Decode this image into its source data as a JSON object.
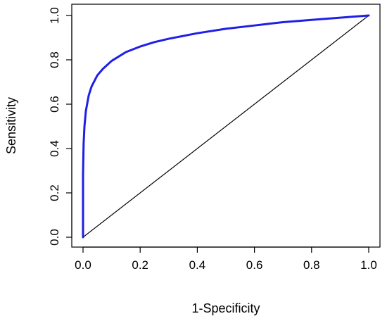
{
  "chart_data": {
    "type": "line",
    "title": "",
    "xlabel": "1-Specificity",
    "ylabel": "Sensitivity",
    "xlim": [
      0.0,
      1.0
    ],
    "ylim": [
      0.0,
      1.0
    ],
    "xticks": [
      "0.0",
      "0.2",
      "0.4",
      "0.6",
      "0.8",
      "1.0"
    ],
    "yticks": [
      "0.0",
      "0.2",
      "0.4",
      "0.6",
      "0.8",
      "1.0"
    ],
    "grid": false,
    "legend": "none",
    "series": [
      {
        "color": "#1f1fe6",
        "x": [
          0.0,
          0.0,
          0.002,
          0.005,
          0.01,
          0.02,
          0.03,
          0.05,
          0.07,
          0.1,
          0.15,
          0.2,
          0.25,
          0.3,
          0.4,
          0.5,
          0.6,
          0.7,
          0.8,
          0.9,
          1.0
        ],
        "y": [
          0.0,
          0.28,
          0.42,
          0.5,
          0.57,
          0.64,
          0.68,
          0.73,
          0.76,
          0.795,
          0.835,
          0.86,
          0.88,
          0.895,
          0.92,
          0.94,
          0.955,
          0.97,
          0.98,
          0.99,
          1.0
        ]
      },
      {
        "color": "#000000",
        "x": [
          0.0,
          1.0
        ],
        "y": [
          0.0,
          1.0
        ]
      }
    ]
  }
}
